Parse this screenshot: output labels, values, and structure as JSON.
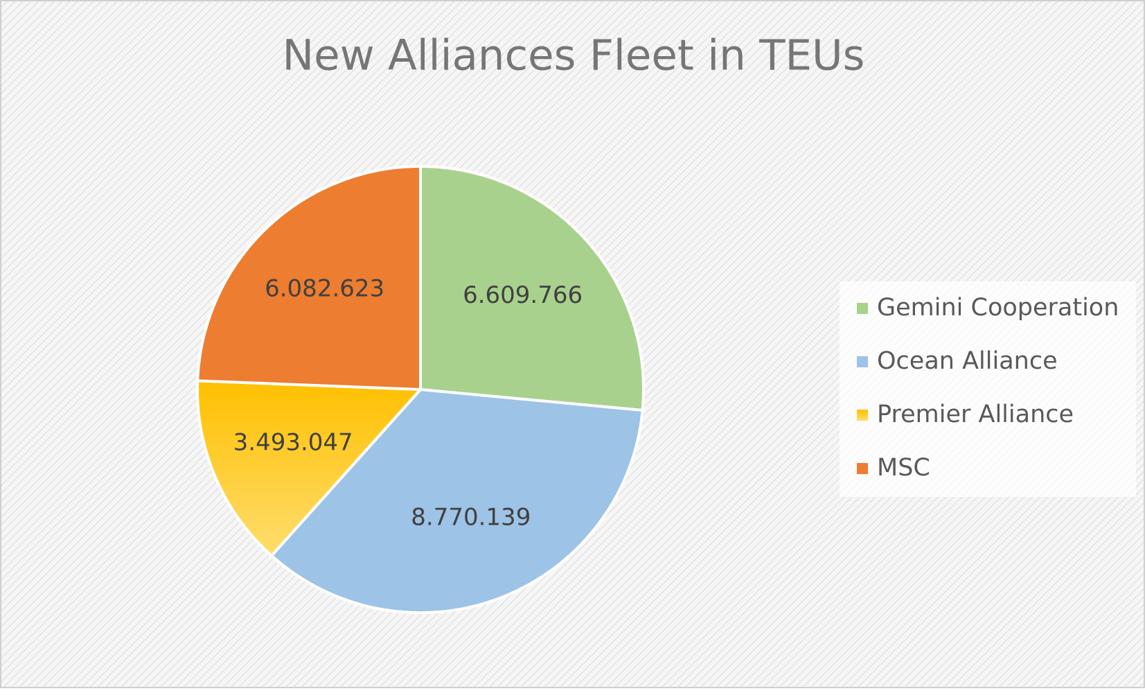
{
  "chart_data": {
    "type": "pie",
    "title": "New Alliances Fleet in TEUs",
    "categories": [
      "Gemini Cooperation",
      "Ocean Alliance",
      "Premier Alliance",
      "MSC"
    ],
    "values": [
      6609766,
      8770139,
      3493047,
      6082623
    ],
    "value_labels": [
      "6.609.766",
      "8.770.139",
      "3.493.047",
      "6.082.623"
    ],
    "colors": [
      "#a9d18e",
      "#9dc3e6",
      "#ffc000",
      "#ed7d31"
    ],
    "legend": "right"
  }
}
